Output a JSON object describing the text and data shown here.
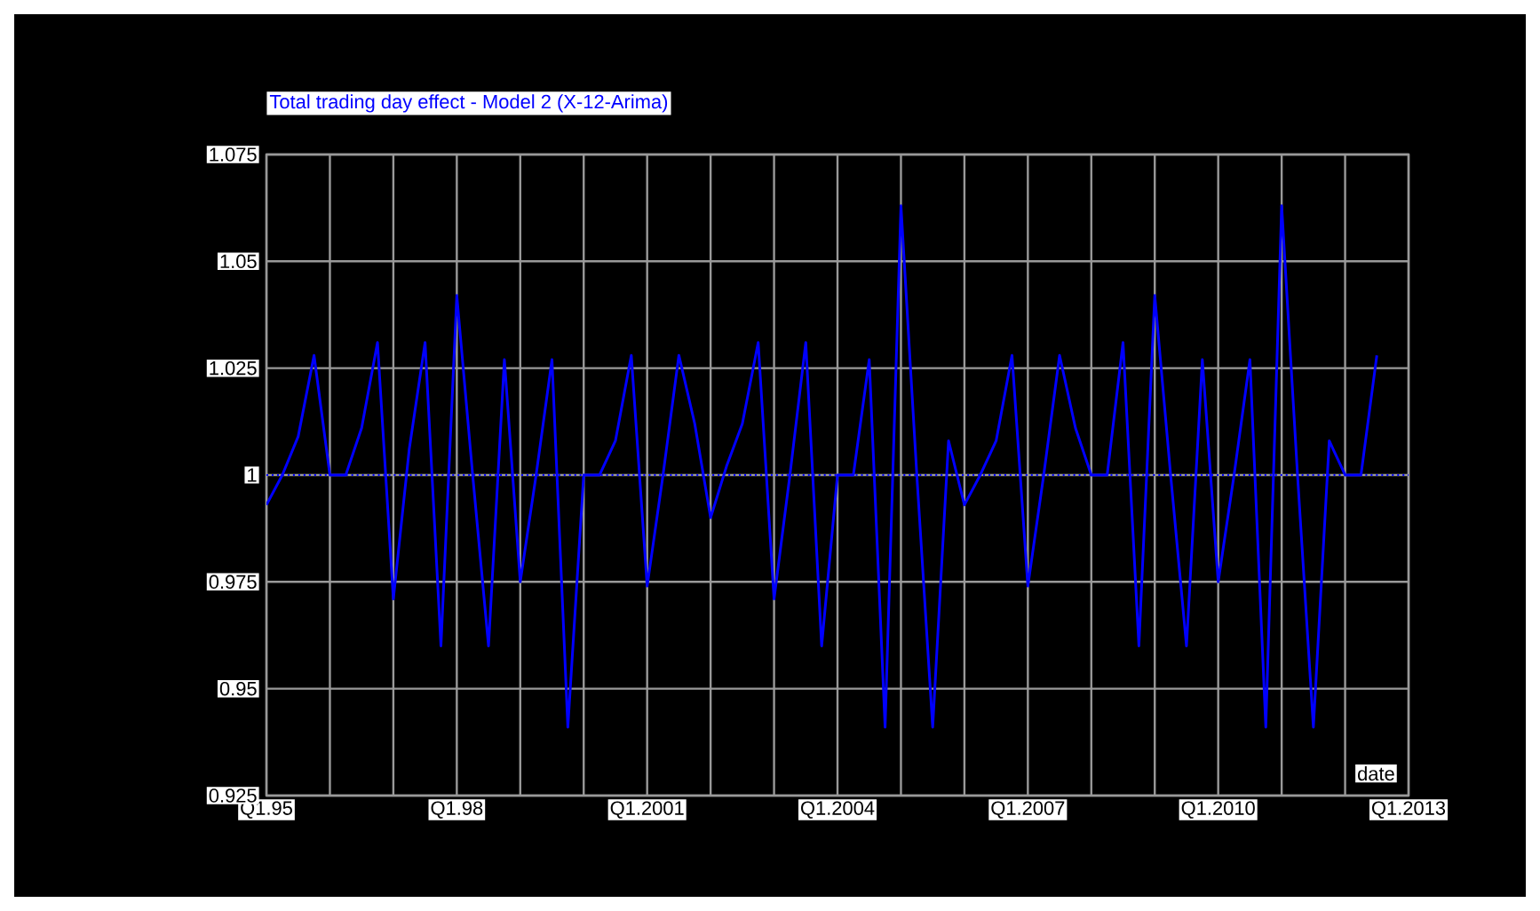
{
  "chart_data": {
    "type": "line",
    "title": "Total trading day effect - Model 2 (X-12-Arima)",
    "xlabel": "date",
    "categories": [
      "Q1.95",
      null,
      null,
      null,
      null,
      null,
      null,
      null,
      null,
      null,
      null,
      null,
      "Q1.98",
      null,
      null,
      null,
      null,
      null,
      null,
      null,
      null,
      null,
      null,
      null,
      "Q1.2001",
      null,
      null,
      null,
      null,
      null,
      null,
      null,
      null,
      null,
      null,
      null,
      "Q1.2004",
      null,
      null,
      null,
      null,
      null,
      null,
      null,
      null,
      null,
      null,
      null,
      "Q1.2007",
      null,
      null,
      null,
      null,
      null,
      null,
      null,
      null,
      null,
      null,
      null,
      "Q1.2010",
      null,
      null,
      null,
      null,
      null,
      null,
      null,
      null,
      null,
      null,
      null,
      "Q1.2013"
    ],
    "series": [
      {
        "color": "#0000ff",
        "values": [
          0.993,
          1.0,
          1.009,
          1.028,
          1.0,
          1.0,
          1.011,
          1.031,
          0.971,
          1.006,
          1.031,
          0.96,
          1.042,
          1.0,
          0.96,
          1.027,
          0.975,
          1.0,
          1.027,
          0.941,
          1.0,
          1.0,
          1.008,
          1.028,
          0.974,
          1.0,
          1.028,
          1.012,
          0.99,
          1.002,
          1.012,
          1.031,
          0.971,
          1.0,
          1.031,
          0.96,
          1.0,
          1.0,
          1.027,
          0.941,
          1.063,
          1.0,
          0.941,
          1.008,
          0.993,
          1.0,
          1.008,
          1.028,
          0.974,
          1.0,
          1.028,
          1.011,
          1.0,
          1.0,
          1.031,
          0.96,
          1.042,
          1.0,
          0.96,
          1.027,
          0.975,
          1.0,
          1.027,
          0.941,
          1.063,
          1.0,
          0.941,
          1.008,
          1.0,
          1.0,
          1.028,
          null,
          null
        ]
      }
    ],
    "ylim": [
      0.925,
      1.075
    ],
    "yticks": [
      0.925,
      0.95,
      0.975,
      1,
      1.025,
      1.05,
      1.075
    ],
    "grid": true,
    "marker": "none",
    "line_style": "solid",
    "ref_lines": [
      {
        "axis": "y",
        "value": 1,
        "color": "#0000ff",
        "line_style": "dotted"
      }
    ]
  }
}
